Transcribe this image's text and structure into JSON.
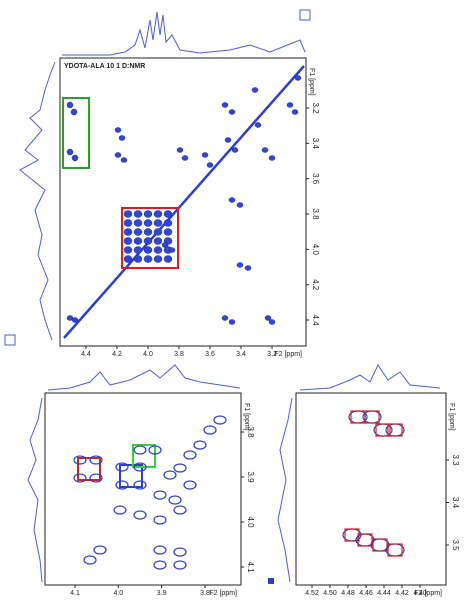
{
  "main": {
    "title": "YDOTA-ALA 10 1 D:NMR",
    "f1_label": "F1 [ppm]",
    "f2_label": "F2 [ppm]",
    "f1_ticks": [
      "3.2",
      "3.4",
      "3.6",
      "3.8",
      "4.0",
      "4.2",
      "4.4"
    ],
    "f2_ticks": [
      "4.4",
      "4.2",
      "4.0",
      "3.8",
      "3.6",
      "3.4",
      "3.2"
    ]
  },
  "zoom_left": {
    "f1_label": "F1 [ppm]",
    "f2_label": "F2 [ppm]",
    "f1_ticks": [
      "3.8",
      "3.9",
      "4.0",
      "4.1"
    ],
    "f2_ticks": [
      "4.1",
      "4.0",
      "3.9",
      "3.8"
    ]
  },
  "zoom_right": {
    "f1_label": "F1 [ppm]",
    "f2_label": "F2 [ppm]",
    "f1_ticks": [
      "3.3",
      "3.4",
      "3.5"
    ],
    "f2_ticks": [
      "4.52",
      "4.50",
      "4.48",
      "4.46",
      "4.44",
      "4.42",
      "4.40"
    ]
  }
}
